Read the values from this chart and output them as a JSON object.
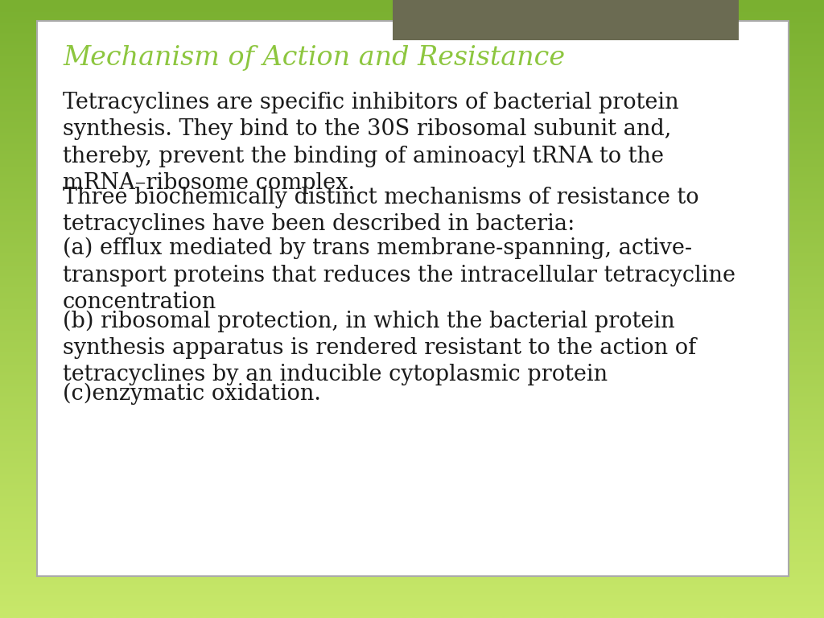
{
  "title": "Mechanism of Action and Resistance",
  "title_color": "#8dc63f",
  "title_fontsize": 24,
  "body_fontsize": 19.5,
  "body_color": "#1a1a1a",
  "background_top": "#c8e86a",
  "background_bottom": "#7ab030",
  "background_card": "#ffffff",
  "header_box_color": "#6b6b52",
  "card_edge_color": "#aaaaaa",
  "paragraphs": [
    "Tetracyclines are specific inhibitors of bacterial protein\nsynthesis. They bind to the 30S ribosomal subunit and,\nthereby, prevent the binding of aminoacyl tRNA to the\nmRNA–ribosome complex.",
    "Three biochemically distinct mechanisms of resistance to\ntetracyclines have been described in bacteria:",
    "(a) efflux mediated by trans membrane-spanning, active-\ntransport proteins that reduces the intracellular tetracycline\nconcentration",
    "(b) ribosomal protection, in which the bacterial protein\nsynthesis apparatus is rendered resistant to the action of\ntetracyclines by an inducible cytoplasmic protein",
    "(c)enzymatic oxidation."
  ]
}
